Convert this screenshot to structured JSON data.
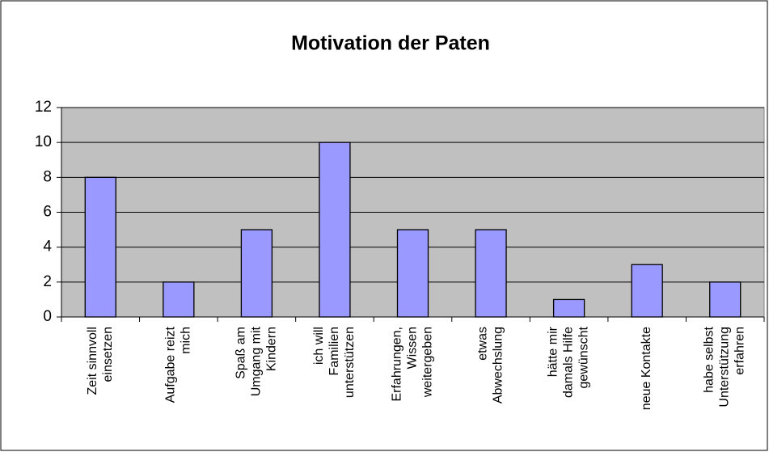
{
  "chart_data": {
    "type": "bar",
    "title": "Motivation der Paten",
    "categories": [
      "Zeit sinnvoll einsetzen",
      "Aufgabe reizt mich",
      "Spaß am Umgang mit Kindern",
      "ich will Familien unterstützen",
      "Erfahrungen, Wissen weitergeben",
      "etwas Abwechslung",
      "hätte mir damals Hilfe gewünscht",
      "neue Kontakte",
      "habe selbst Unterstützung erfahren"
    ],
    "values": [
      8,
      2,
      5,
      10,
      5,
      5,
      1,
      3,
      2
    ],
    "color": "#9999ff",
    "ylim": [
      0,
      12
    ],
    "yticks": [
      0,
      2,
      4,
      6,
      8,
      10,
      12
    ],
    "grid": true
  }
}
